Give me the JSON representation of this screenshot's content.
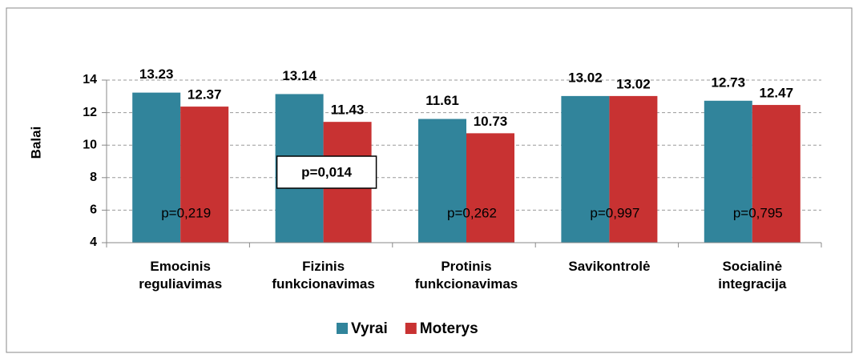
{
  "chart_data": {
    "type": "bar",
    "y_label": "Balai",
    "categories": [
      "Emocinis reguliavimas",
      "Fizinis funkcionavimas",
      "Protinis funkcionavimas",
      "Savikontrolė",
      "Socialinė integracija"
    ],
    "series": [
      {
        "name": "Vyrai",
        "color": "#31849b",
        "values": [
          13.23,
          13.14,
          11.61,
          13.02,
          12.73
        ]
      },
      {
        "name": "Moterys",
        "color": "#c83232",
        "values": [
          12.37,
          11.43,
          10.73,
          13.02,
          12.47
        ]
      }
    ],
    "annotations": [
      {
        "text": "p=0,219",
        "boxed": false
      },
      {
        "text": "p=0,014",
        "boxed": true
      },
      {
        "text": "p=0,262",
        "boxed": false
      },
      {
        "text": "p=0,997",
        "boxed": false
      },
      {
        "text": "p=0,795",
        "boxed": false
      }
    ],
    "ylim": [
      4,
      14
    ],
    "yticks": [
      4,
      6,
      8,
      10,
      12,
      14
    ],
    "grid": true,
    "legend": "bottom"
  }
}
